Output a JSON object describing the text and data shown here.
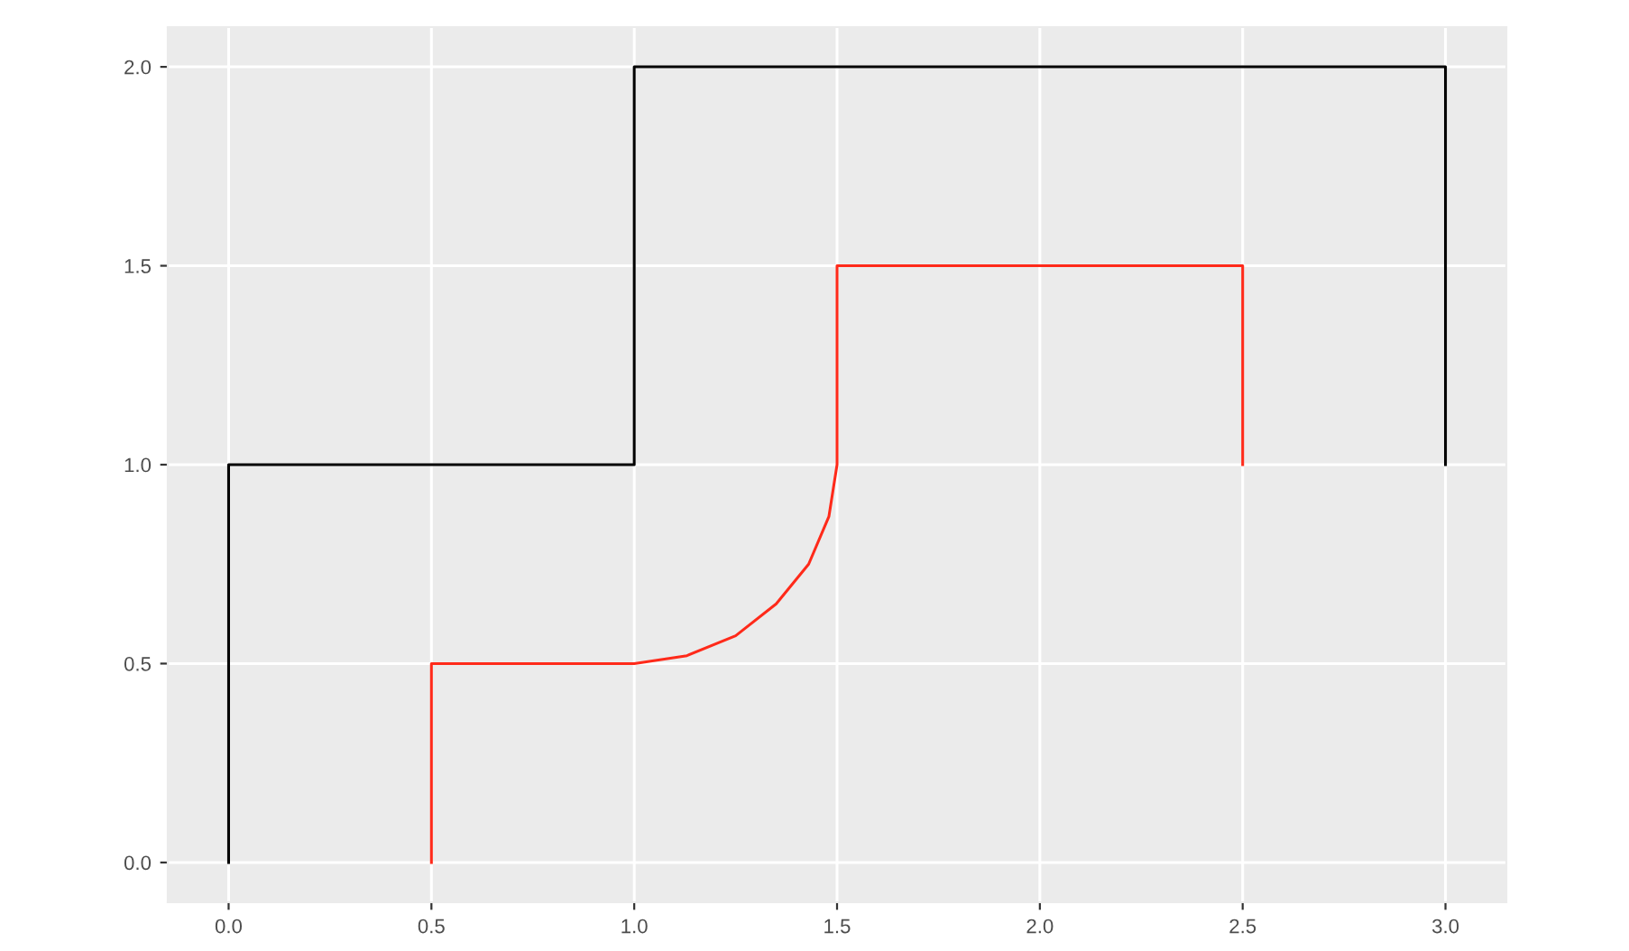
{
  "chart_data": {
    "type": "line",
    "grid": true,
    "marker": "none",
    "line_style": "solid",
    "xlim": [
      -0.15,
      3.15
    ],
    "ylim": [
      -0.1,
      2.1
    ],
    "xticks": [
      {
        "value": 0,
        "label": "0.0"
      },
      {
        "value": 0.5,
        "label": "0.5"
      },
      {
        "value": 1,
        "label": "1.0"
      },
      {
        "value": 1.5,
        "label": "1.5"
      },
      {
        "value": 2,
        "label": "2.0"
      },
      {
        "value": 2.5,
        "label": "2.5"
      },
      {
        "value": 3,
        "label": "3.0"
      }
    ],
    "yticks": [
      {
        "value": 0,
        "label": "0.0"
      },
      {
        "value": 0.5,
        "label": "0.5"
      },
      {
        "value": 1,
        "label": "1.0"
      },
      {
        "value": 1.5,
        "label": "1.5"
      },
      {
        "value": 2,
        "label": "2.0"
      }
    ],
    "series": [
      {
        "color": "#000000",
        "x": [
          0,
          0,
          1,
          1,
          3,
          3
        ],
        "values": [
          0,
          1,
          1,
          2,
          2,
          1
        ]
      },
      {
        "color": "#ff2a1a",
        "x": [
          0.5,
          0.5,
          1,
          1.13,
          1.25,
          1.35,
          1.43,
          1.48,
          1.5,
          1.5,
          2.5,
          2.5
        ],
        "values": [
          0,
          0.5,
          0.5,
          0.52,
          0.57,
          0.65,
          0.75,
          0.87,
          1,
          1.5,
          1.5,
          1
        ]
      }
    ]
  }
}
